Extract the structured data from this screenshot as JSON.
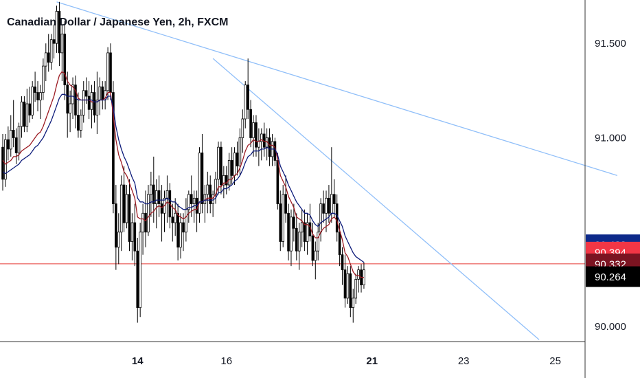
{
  "chart_data": {
    "type": "candlestick",
    "title": "Canadian Dollar / Japanese Yen, 2h, FXCM",
    "ylim": [
      89.92,
      91.73
    ],
    "y_ticks": [
      "91.500",
      "91.000",
      "90.000"
    ],
    "y_tick_values": [
      91.5,
      91.0,
      90.0
    ],
    "x_ticks": [
      {
        "label": "14",
        "bold": true,
        "bar": 50
      },
      {
        "label": "16",
        "bold": false,
        "bar": 83
      },
      {
        "label": "21",
        "bold": true,
        "bar": 137
      },
      {
        "label": "23",
        "bold": false,
        "bar": 171
      },
      {
        "label": "25",
        "bold": false,
        "bar": 205
      }
    ],
    "ohlc": [
      [
        90.95,
        91.02,
        90.72,
        90.78
      ],
      [
        90.78,
        91.02,
        90.74,
        90.99
      ],
      [
        90.99,
        91.06,
        90.88,
        90.94
      ],
      [
        90.94,
        91.12,
        90.9,
        91.04
      ],
      [
        91.04,
        91.2,
        90.95,
        91.0
      ],
      [
        91.0,
        91.05,
        90.86,
        90.92
      ],
      [
        90.92,
        91.08,
        90.88,
        91.06
      ],
      [
        91.06,
        91.22,
        91.0,
        91.19
      ],
      [
        91.19,
        91.22,
        91.03,
        91.06
      ],
      [
        91.06,
        91.26,
        91.03,
        91.18
      ],
      [
        91.18,
        91.27,
        91.08,
        91.12
      ],
      [
        91.12,
        91.3,
        91.1,
        91.27
      ],
      [
        91.27,
        91.35,
        91.19,
        91.24
      ],
      [
        91.24,
        91.3,
        91.14,
        91.2
      ],
      [
        91.2,
        91.28,
        91.1,
        91.24
      ],
      [
        91.24,
        91.42,
        91.2,
        91.38
      ],
      [
        91.38,
        91.5,
        91.3,
        91.45
      ],
      [
        91.45,
        91.55,
        91.35,
        91.4
      ],
      [
        91.4,
        91.55,
        91.36,
        91.52
      ],
      [
        91.52,
        91.6,
        91.42,
        91.5
      ],
      [
        91.5,
        91.7,
        91.45,
        91.67
      ],
      [
        91.67,
        91.72,
        91.38,
        91.45
      ],
      [
        91.45,
        91.6,
        91.3,
        91.55
      ],
      [
        91.55,
        91.62,
        91.2,
        91.28
      ],
      [
        91.28,
        91.35,
        91.0,
        91.13
      ],
      [
        91.13,
        91.25,
        91.03,
        91.18
      ],
      [
        91.18,
        91.32,
        91.1,
        91.28
      ],
      [
        91.28,
        91.33,
        91.05,
        91.12
      ],
      [
        91.12,
        91.24,
        91.0,
        91.04
      ],
      [
        91.04,
        91.15,
        91.0,
        91.12
      ],
      [
        91.12,
        91.3,
        91.08,
        91.25
      ],
      [
        91.25,
        91.32,
        91.18,
        91.22
      ],
      [
        91.22,
        91.3,
        91.1,
        91.15
      ],
      [
        91.15,
        91.28,
        91.05,
        91.24
      ],
      [
        91.24,
        91.3,
        91.08,
        91.12
      ],
      [
        91.12,
        91.35,
        91.02,
        91.2
      ],
      [
        91.2,
        91.32,
        91.12,
        91.27
      ],
      [
        91.27,
        91.3,
        91.15,
        91.2
      ],
      [
        91.2,
        91.3,
        91.15,
        91.25
      ],
      [
        91.25,
        91.48,
        91.2,
        91.45
      ],
      [
        91.45,
        91.5,
        91.2,
        91.24
      ],
      [
        91.24,
        91.3,
        90.6,
        90.65
      ],
      [
        90.65,
        90.75,
        90.3,
        90.42
      ],
      [
        90.42,
        90.6,
        90.33,
        90.5
      ],
      [
        90.5,
        90.8,
        90.4,
        90.75
      ],
      [
        90.75,
        90.85,
        90.5,
        90.55
      ],
      [
        90.55,
        90.75,
        90.52,
        90.7
      ],
      [
        90.7,
        90.78,
        90.4,
        90.45
      ],
      [
        90.45,
        90.6,
        90.35,
        90.55
      ],
      [
        90.55,
        90.65,
        90.32,
        90.4
      ],
      [
        90.4,
        90.47,
        90.02,
        90.1
      ],
      [
        90.1,
        90.55,
        90.05,
        90.5
      ],
      [
        90.5,
        90.65,
        90.38,
        90.6
      ],
      [
        90.6,
        90.72,
        90.42,
        90.5
      ],
      [
        90.5,
        90.75,
        90.48,
        90.7
      ],
      [
        90.7,
        90.82,
        90.58,
        90.75
      ],
      [
        90.75,
        90.9,
        90.55,
        90.65
      ],
      [
        90.65,
        90.78,
        90.52,
        90.72
      ],
      [
        90.72,
        90.8,
        90.58,
        90.65
      ],
      [
        90.65,
        90.75,
        90.45,
        90.6
      ],
      [
        90.6,
        90.72,
        90.5,
        90.68
      ],
      [
        90.68,
        90.8,
        90.55,
        90.72
      ],
      [
        90.72,
        90.76,
        90.52,
        90.58
      ],
      [
        90.58,
        90.65,
        90.45,
        90.55
      ],
      [
        90.55,
        90.68,
        90.48,
        90.6
      ],
      [
        90.6,
        90.65,
        90.35,
        90.42
      ],
      [
        90.42,
        90.6,
        90.36,
        90.55
      ],
      [
        90.55,
        90.6,
        90.4,
        90.5
      ],
      [
        90.5,
        90.68,
        90.45,
        90.62
      ],
      [
        90.62,
        90.72,
        90.55,
        90.7
      ],
      [
        90.7,
        90.8,
        90.58,
        90.65
      ],
      [
        90.65,
        90.72,
        90.55,
        90.68
      ],
      [
        90.68,
        90.72,
        90.5,
        90.6
      ],
      [
        90.6,
        90.95,
        90.55,
        90.92
      ],
      [
        90.92,
        91.02,
        90.6,
        90.65
      ],
      [
        90.65,
        90.75,
        90.55,
        90.7
      ],
      [
        90.7,
        90.82,
        90.6,
        90.75
      ],
      [
        90.75,
        90.8,
        90.6,
        90.65
      ],
      [
        90.65,
        90.72,
        90.58,
        90.7
      ],
      [
        90.7,
        90.82,
        90.65,
        90.78
      ],
      [
        90.78,
        90.98,
        90.7,
        90.95
      ],
      [
        90.95,
        90.98,
        90.7,
        90.75
      ],
      [
        90.75,
        90.85,
        90.68,
        90.8
      ],
      [
        90.8,
        90.85,
        90.7,
        90.75
      ],
      [
        90.75,
        90.92,
        90.72,
        90.88
      ],
      [
        90.88,
        90.95,
        90.75,
        90.8
      ],
      [
        90.8,
        90.95,
        90.75,
        90.92
      ],
      [
        90.92,
        90.98,
        90.8,
        90.85
      ],
      [
        90.85,
        91.05,
        90.8,
        91.0
      ],
      [
        91.0,
        91.15,
        90.92,
        91.1
      ],
      [
        91.1,
        91.3,
        91.05,
        91.28
      ],
      [
        91.28,
        91.42,
        91.1,
        91.15
      ],
      [
        91.15,
        91.2,
        90.95,
        91.0
      ],
      [
        91.0,
        91.12,
        90.9,
        91.08
      ],
      [
        91.08,
        91.12,
        90.9,
        90.95
      ],
      [
        90.95,
        91.05,
        90.85,
        90.98
      ],
      [
        90.98,
        91.05,
        90.88,
        91.02
      ],
      [
        91.02,
        91.08,
        90.9,
        90.95
      ],
      [
        90.95,
        91.05,
        90.88,
        91.0
      ],
      [
        91.0,
        91.05,
        90.85,
        90.9
      ],
      [
        90.9,
        91.02,
        90.85,
        90.98
      ],
      [
        90.98,
        91.0,
        90.85,
        90.88
      ],
      [
        90.88,
        90.92,
        90.62,
        90.65
      ],
      [
        90.65,
        90.72,
        90.4,
        90.45
      ],
      [
        90.45,
        90.75,
        90.42,
        90.7
      ],
      [
        90.7,
        90.8,
        90.55,
        90.6
      ],
      [
        90.6,
        90.65,
        90.35,
        90.4
      ],
      [
        90.4,
        90.62,
        90.32,
        90.58
      ],
      [
        90.58,
        90.65,
        90.45,
        90.52
      ],
      [
        90.52,
        90.6,
        90.35,
        90.4
      ],
      [
        90.4,
        90.55,
        90.3,
        90.5
      ],
      [
        90.5,
        90.62,
        90.42,
        90.55
      ],
      [
        90.55,
        90.62,
        90.4,
        90.45
      ],
      [
        90.45,
        90.6,
        90.38,
        90.55
      ],
      [
        90.55,
        90.65,
        90.45,
        90.48
      ],
      [
        90.48,
        90.55,
        90.32,
        90.35
      ],
      [
        90.35,
        90.45,
        90.25,
        90.4
      ],
      [
        90.4,
        90.55,
        90.35,
        90.5
      ],
      [
        90.5,
        90.68,
        90.45,
        90.65
      ],
      [
        90.65,
        90.72,
        90.55,
        90.6
      ],
      [
        90.6,
        90.72,
        90.5,
        90.68
      ],
      [
        90.68,
        90.75,
        90.55,
        90.6
      ],
      [
        90.6,
        90.95,
        90.55,
        90.7
      ],
      [
        90.7,
        90.78,
        90.58,
        90.65
      ],
      [
        90.65,
        90.7,
        90.45,
        90.5
      ],
      [
        90.5,
        90.55,
        90.32,
        90.38
      ],
      [
        90.38,
        90.42,
        90.22,
        90.3
      ],
      [
        90.3,
        90.38,
        90.1,
        90.15
      ],
      [
        90.15,
        90.32,
        90.12,
        90.28
      ],
      [
        90.28,
        90.32,
        90.05,
        90.1
      ],
      [
        90.1,
        90.2,
        90.02,
        90.15
      ],
      [
        90.15,
        90.28,
        90.12,
        90.25
      ],
      [
        90.25,
        90.32,
        90.18,
        90.3
      ],
      [
        90.3,
        90.33,
        90.18,
        90.22
      ],
      [
        90.22,
        90.34,
        90.2,
        90.3
      ]
    ],
    "series": [
      {
        "name": "",
        "color": "#9c1b23",
        "values": [
          90.88,
          90.86,
          90.87,
          90.88,
          90.9,
          90.9,
          90.91,
          90.93,
          90.94,
          90.95,
          90.96,
          90.98,
          91.0,
          91.02,
          91.03,
          91.06,
          91.1,
          91.14,
          91.18,
          91.22,
          91.28,
          91.33,
          91.35,
          91.34,
          91.3,
          91.28,
          91.27,
          91.25,
          91.21,
          91.2,
          91.2,
          91.2,
          91.2,
          91.19,
          91.19,
          91.19,
          91.2,
          91.2,
          91.21,
          91.24,
          91.24,
          91.12,
          90.99,
          90.91,
          90.87,
          90.82,
          90.8,
          90.76,
          90.72,
          90.68,
          90.58,
          90.57,
          90.57,
          90.56,
          90.58,
          90.6,
          90.61,
          90.63,
          90.64,
          90.63,
          90.64,
          90.66,
          90.65,
          90.63,
          90.62,
          90.59,
          90.58,
          90.57,
          90.58,
          90.6,
          90.61,
          90.62,
          90.62,
          90.66,
          90.66,
          90.67,
          90.68,
          90.68,
          90.68,
          90.7,
          90.74,
          90.74,
          90.76,
          90.76,
          90.78,
          90.78,
          90.8,
          90.81,
          90.84,
          90.88,
          90.93,
          90.96,
          90.97,
          90.99,
          90.98,
          90.98,
          90.99,
          90.98,
          90.98,
          90.96,
          90.96,
          90.95,
          90.89,
          90.8,
          90.77,
          90.74,
          90.69,
          90.66,
          90.63,
          90.58,
          90.57,
          90.56,
          90.54,
          90.54,
          90.53,
          90.49,
          90.47,
          90.47,
          90.5,
          90.52,
          90.53,
          90.54,
          90.57,
          90.58,
          90.56,
          90.51,
          90.46,
          90.39,
          90.37,
          90.33,
          90.29,
          90.27,
          90.27,
          90.26,
          90.26
        ]
      },
      {
        "name": "",
        "color": "#0d1b7a",
        "values": [
          90.82,
          90.81,
          90.82,
          90.83,
          90.84,
          90.85,
          90.86,
          90.88,
          90.89,
          90.9,
          90.91,
          90.93,
          90.95,
          90.96,
          90.98,
          91.0,
          91.03,
          91.06,
          91.09,
          91.13,
          91.17,
          91.21,
          91.23,
          91.23,
          91.22,
          91.22,
          91.22,
          91.21,
          91.2,
          91.2,
          91.2,
          91.2,
          91.2,
          91.2,
          91.19,
          91.19,
          91.2,
          91.2,
          91.2,
          91.22,
          91.22,
          91.16,
          91.06,
          90.99,
          90.94,
          90.9,
          90.87,
          90.83,
          90.79,
          90.76,
          90.68,
          90.66,
          90.66,
          90.65,
          90.65,
          90.66,
          90.66,
          90.67,
          90.67,
          90.67,
          90.67,
          90.68,
          90.67,
          90.66,
          90.66,
          90.64,
          90.63,
          90.62,
          90.62,
          90.63,
          90.63,
          90.64,
          90.64,
          90.66,
          90.66,
          90.67,
          90.67,
          90.67,
          90.67,
          90.68,
          90.71,
          90.71,
          90.73,
          90.73,
          90.74,
          90.75,
          90.77,
          90.78,
          90.8,
          90.83,
          90.87,
          90.9,
          90.91,
          90.93,
          90.93,
          90.93,
          90.94,
          90.94,
          90.95,
          90.94,
          90.94,
          90.94,
          90.91,
          90.85,
          90.82,
          90.79,
          90.75,
          90.72,
          90.69,
          90.66,
          90.64,
          90.62,
          90.6,
          90.6,
          90.59,
          90.56,
          90.54,
          90.53,
          90.55,
          90.56,
          90.57,
          90.58,
          90.6,
          90.6,
          90.59,
          90.56,
          90.53,
          90.48,
          90.45,
          90.42,
          90.39,
          90.37,
          90.36,
          90.35,
          90.34
        ]
      }
    ],
    "trendlines": [
      {
        "bar1": 20,
        "price1": 91.72,
        "bar2": 228,
        "price2": 90.8
      },
      {
        "bar1": 78,
        "price1": 91.42,
        "bar2": 199,
        "price2": 89.93
      }
    ],
    "horizontal_line": {
      "price": 90.332,
      "color": "#e53935"
    },
    "price_badges": [
      {
        "label": "90.433",
        "price": 90.433,
        "color": "#0d2a8a"
      },
      {
        "label": "90.394",
        "price": 90.394,
        "color": "#f23645"
      },
      {
        "label": "90.332",
        "price": 90.332,
        "color": "#7b1421"
      },
      {
        "label": "90.264",
        "price": 90.264,
        "color": "#000000"
      }
    ],
    "colors": {
      "up": "#ffffff",
      "down": "#000000",
      "outline": "#000000",
      "trendline": "#90bff9",
      "grid_border": "#333333"
    }
  }
}
